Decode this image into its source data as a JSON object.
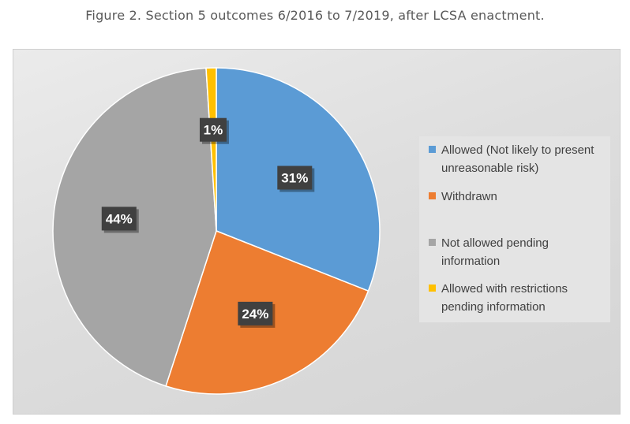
{
  "figure": {
    "title": "Figure 2.  Section 5 outcomes 6/2016 to 7/2019, after LCSA enactment."
  },
  "colors": {
    "blue": "#5b9bd5",
    "orange": "#ed7d31",
    "gray": "#a5a5a5",
    "yellow": "#ffc000"
  },
  "chart_data": {
    "type": "pie",
    "title": "",
    "legend_position": "right",
    "slices": [
      {
        "label": "Allowed (Not likely to present unreasonable risk)",
        "value": 31,
        "display": "31%",
        "color": "#5b9bd5"
      },
      {
        "label": "Withdrawn",
        "value": 24,
        "display": "24%",
        "color": "#ed7d31"
      },
      {
        "label": "Not allowed pending information",
        "value": 44,
        "display": "44%",
        "color": "#a5a5a5"
      },
      {
        "label": "Allowed with restrictions pending information",
        "value": 1,
        "display": "1%",
        "color": "#ffc000"
      }
    ]
  }
}
